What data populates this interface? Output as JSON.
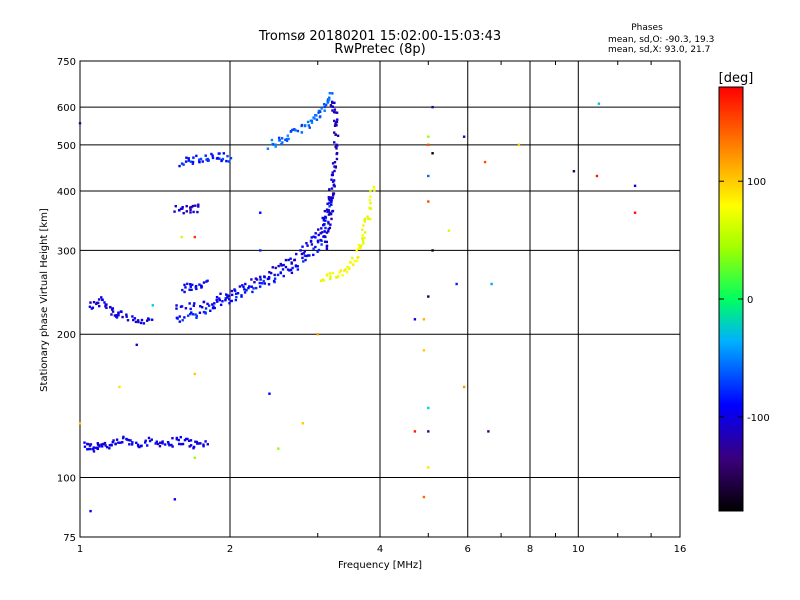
{
  "chart_data": {
    "type": "scatter",
    "title": "Tromsø 20180201 15:02:00-15:03:43",
    "subtitle": "RwPretec (8p)",
    "xlabel": "Frequency [MHz]",
    "ylabel": "Stationary phase Virtual Height [km]",
    "x_scale": "log",
    "y_scale": "log",
    "xlim": [
      1,
      16
    ],
    "ylim": [
      75,
      750
    ],
    "grid": true,
    "xticks": [
      1,
      2,
      4,
      6,
      8,
      10,
      16
    ],
    "xtick_labels": [
      "1",
      "2",
      "4",
      "6",
      "8",
      "10",
      "16"
    ],
    "yticks": [
      75,
      100,
      200,
      300,
      400,
      500,
      600,
      750
    ],
    "ytick_labels": [
      "75",
      "100",
      "200",
      "300",
      "400",
      "500",
      "600",
      "750"
    ],
    "stats": {
      "title": "Phases",
      "o_line": "mean, sd,O: -90.3, 19.3",
      "x_line": "mean, sd,X:  93.0, 21.7"
    },
    "colorbar": {
      "label": "[deg]",
      "range": [
        -180,
        180
      ],
      "ticks": [
        100,
        0,
        -100
      ],
      "tick_labels": [
        "100",
        "0",
        "-100"
      ]
    },
    "traces": [
      {
        "x": [
          1.02,
          1.06,
          1.1,
          1.15,
          1.22,
          1.3,
          1.4,
          1.5,
          1.6,
          1.7,
          1.8
        ],
        "y": [
          117,
          115,
          118,
          116,
          120,
          118,
          119,
          118,
          120,
          117,
          118
        ],
        "phase": -100
      },
      {
        "x": [
          1.55,
          1.7,
          1.85,
          2.0,
          2.2,
          2.4,
          2.6,
          2.8,
          3.0,
          3.1,
          3.2
        ],
        "y": [
          215,
          220,
          228,
          238,
          248,
          258,
          270,
          285,
          305,
          330,
          380
        ],
        "phase": -85
      },
      {
        "x": [
          1.55,
          1.75,
          1.95,
          2.1,
          2.3,
          2.5,
          2.7,
          2.9,
          3.05,
          3.15,
          3.22
        ],
        "y": [
          225,
          232,
          240,
          250,
          262,
          275,
          290,
          310,
          335,
          365,
          420
        ],
        "phase": -100
      },
      {
        "x": [
          3.1,
          3.16,
          3.2,
          3.23,
          3.25,
          3.27,
          3.25,
          3.2
        ],
        "y": [
          300,
          340,
          380,
          420,
          470,
          530,
          580,
          620
        ],
        "phase": -110
      },
      {
        "x": [
          3.05,
          3.25,
          3.45,
          3.6,
          3.7,
          3.8,
          3.88
        ],
        "y": [
          260,
          265,
          275,
          295,
          320,
          360,
          410
        ],
        "phase": 75
      },
      {
        "x": [
          2.4,
          2.55,
          2.7,
          2.85,
          3.0,
          3.1,
          3.2
        ],
        "y": [
          500,
          510,
          530,
          550,
          570,
          600,
          640
        ],
        "phase": -60
      },
      {
        "x": [
          1.6,
          1.7,
          1.8,
          1.9,
          2.0
        ],
        "y": [
          460,
          465,
          470,
          472,
          470
        ],
        "phase": -80
      },
      {
        "x": [
          1.55,
          1.65,
          1.75
        ],
        "y": [
          365,
          365,
          368
        ],
        "phase": -110
      },
      {
        "x": [
          1.05,
          1.1,
          1.15,
          1.2,
          1.3,
          1.4
        ],
        "y": [
          230,
          235,
          225,
          220,
          215,
          210
        ],
        "phase": -100
      },
      {
        "x": [
          1.6,
          1.7,
          1.8
        ],
        "y": [
          250,
          252,
          255
        ],
        "phase": -95
      }
    ],
    "scatter": [
      {
        "x": 1.05,
        "y": 85,
        "phase": -90
      },
      {
        "x": 1.55,
        "y": 90,
        "phase": -100
      },
      {
        "x": 4.9,
        "y": 91,
        "phase": 140
      },
      {
        "x": 6.6,
        "y": 125,
        "phase": -140
      },
      {
        "x": 5.0,
        "y": 125,
        "phase": -130
      },
      {
        "x": 4.7,
        "y": 125,
        "phase": 170
      },
      {
        "x": 5.0,
        "y": 105,
        "phase": 90
      },
      {
        "x": 5.0,
        "y": 140,
        "phase": -20
      },
      {
        "x": 5.9,
        "y": 155,
        "phase": 120
      },
      {
        "x": 4.9,
        "y": 185,
        "phase": 100
      },
      {
        "x": 4.7,
        "y": 215,
        "phase": -100
      },
      {
        "x": 4.9,
        "y": 215,
        "phase": 110
      },
      {
        "x": 5.0,
        "y": 240,
        "phase": -160
      },
      {
        "x": 5.1,
        "y": 300,
        "phase": -170
      },
      {
        "x": 5.5,
        "y": 330,
        "phase": 60
      },
      {
        "x": 5.0,
        "y": 380,
        "phase": 150
      },
      {
        "x": 5.0,
        "y": 430,
        "phase": -60
      },
      {
        "x": 5.1,
        "y": 480,
        "phase": -180
      },
      {
        "x": 5.0,
        "y": 500,
        "phase": 150
      },
      {
        "x": 5.0,
        "y": 520,
        "phase": 40
      },
      {
        "x": 5.1,
        "y": 600,
        "phase": -120
      },
      {
        "x": 5.9,
        "y": 520,
        "phase": -120
      },
      {
        "x": 6.5,
        "y": 460,
        "phase": 150
      },
      {
        "x": 7.6,
        "y": 500,
        "phase": 100
      },
      {
        "x": 9.8,
        "y": 440,
        "phase": -150
      },
      {
        "x": 10.9,
        "y": 430,
        "phase": 170
      },
      {
        "x": 13.0,
        "y": 410,
        "phase": -100
      },
      {
        "x": 13.0,
        "y": 360,
        "phase": 175
      },
      {
        "x": 11.0,
        "y": 610,
        "phase": -30
      },
      {
        "x": 6.7,
        "y": 255,
        "phase": -40
      },
      {
        "x": 5.7,
        "y": 255,
        "phase": -80
      },
      {
        "x": 1.0,
        "y": 555,
        "phase": -120
      },
      {
        "x": 1.6,
        "y": 320,
        "phase": 60
      },
      {
        "x": 1.7,
        "y": 320,
        "phase": 160
      },
      {
        "x": 1.3,
        "y": 190,
        "phase": -110
      },
      {
        "x": 1.7,
        "y": 110,
        "phase": 40
      },
      {
        "x": 2.5,
        "y": 115,
        "phase": 40
      },
      {
        "x": 2.8,
        "y": 130,
        "phase": 100
      },
      {
        "x": 1.2,
        "y": 155,
        "phase": 90
      },
      {
        "x": 1.7,
        "y": 165,
        "phase": 100
      },
      {
        "x": 2.4,
        "y": 150,
        "phase": -90
      },
      {
        "x": 3.0,
        "y": 200,
        "phase": 120
      },
      {
        "x": 2.3,
        "y": 360,
        "phase": -90
      },
      {
        "x": 2.3,
        "y": 300,
        "phase": -80
      },
      {
        "x": 1.0,
        "y": 130,
        "phase": 100
      },
      {
        "x": 1.4,
        "y": 230,
        "phase": -20
      }
    ]
  }
}
